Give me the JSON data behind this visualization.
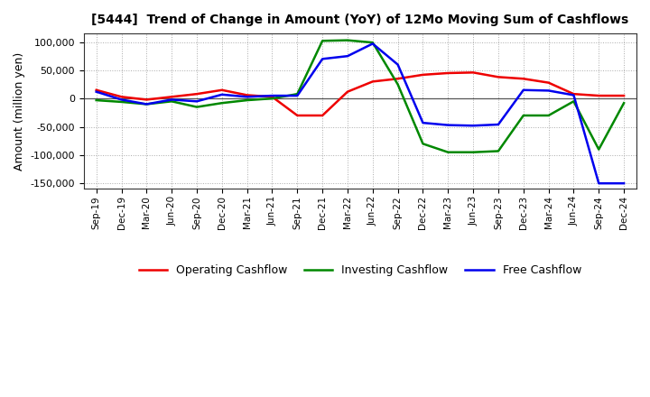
{
  "title": "[5444]  Trend of Change in Amount (YoY) of 12Mo Moving Sum of Cashflows",
  "ylabel": "Amount (million yen)",
  "background_color": "#ffffff",
  "grid_color": "#aaaaaa",
  "x_labels": [
    "Sep-19",
    "Dec-19",
    "Mar-20",
    "Jun-20",
    "Sep-20",
    "Dec-20",
    "Mar-21",
    "Jun-21",
    "Sep-21",
    "Dec-21",
    "Mar-22",
    "Jun-22",
    "Sep-22",
    "Dec-22",
    "Mar-23",
    "Jun-23",
    "Sep-23",
    "Dec-23",
    "Mar-24",
    "Jun-24",
    "Sep-24",
    "Dec-24"
  ],
  "operating": [
    15000,
    3000,
    -2000,
    3000,
    8000,
    15000,
    6000,
    3000,
    -30000,
    -30000,
    12000,
    30000,
    35000,
    42000,
    45000,
    46000,
    38000,
    35000,
    28000,
    8000,
    5000,
    5000
  ],
  "investing": [
    -3000,
    -6000,
    -10000,
    -5000,
    -15000,
    -8000,
    -3000,
    0,
    8000,
    102000,
    103000,
    99000,
    25000,
    -80000,
    -95000,
    -95000,
    -93000,
    -30000,
    -30000,
    -5000,
    -90000,
    -8000
  ],
  "free": [
    12000,
    -2000,
    -10000,
    -2000,
    -5000,
    7000,
    3000,
    5000,
    5000,
    70000,
    75000,
    97000,
    60000,
    -43000,
    -47000,
    -48000,
    -46000,
    15000,
    14000,
    6000,
    -150000,
    -150000
  ],
  "ylim": [
    -160000,
    115000
  ],
  "yticks": [
    -150000,
    -100000,
    -50000,
    0,
    50000,
    100000
  ],
  "operating_color": "#ee0000",
  "investing_color": "#008800",
  "free_color": "#0000ee",
  "line_width": 1.8
}
